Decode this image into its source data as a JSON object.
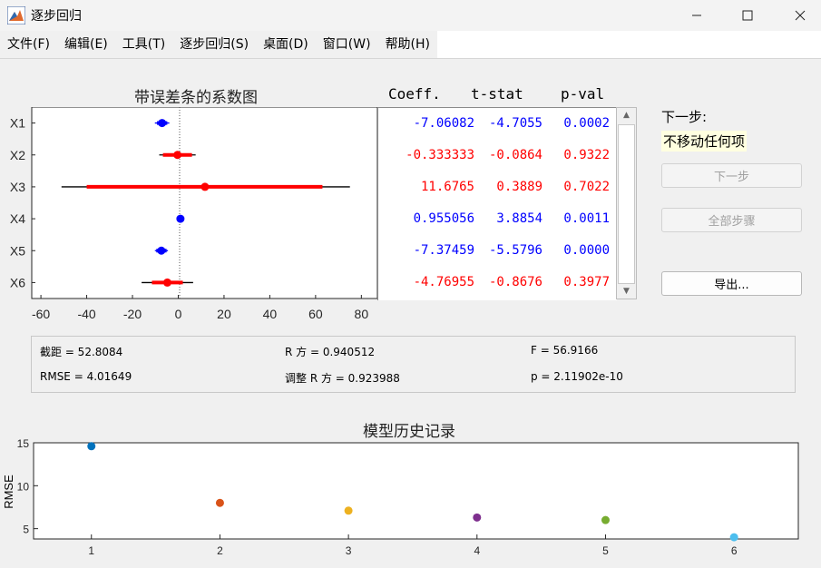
{
  "window": {
    "title": "逐步回归",
    "minimize_icon": "minimize-icon",
    "maximize_icon": "maximize-icon",
    "close_icon": "close-icon"
  },
  "menu": [
    "文件(F)",
    "编辑(E)",
    "工具(T)",
    "逐步回归(S)",
    "桌面(D)",
    "窗口(W)",
    "帮助(H)"
  ],
  "coef_plot": {
    "title": "带误差条的系数图",
    "row_labels": [
      "X1",
      "X2",
      "X3",
      "X4",
      "X5",
      "X6"
    ],
    "x_ticks": [
      "-60",
      "-40",
      "-20",
      "0",
      "20",
      "40",
      "60",
      "80"
    ],
    "xlim": [
      -64,
      87
    ],
    "in_model_color": "#0000ff",
    "out_model_color": "#ff0000"
  },
  "table": {
    "headers": [
      "Coeff.",
      "t-stat",
      "p-val"
    ],
    "rows": [
      {
        "coeff": "-7.06082",
        "tstat": "-4.7055",
        "pval": "0.0002",
        "in_model": true
      },
      {
        "coeff": "-0.333333",
        "tstat": "-0.0864",
        "pval": "0.9322",
        "in_model": false
      },
      {
        "coeff": "11.6765",
        "tstat": "0.3889",
        "pval": "0.7022",
        "in_model": false
      },
      {
        "coeff": "0.955056",
        "tstat": "3.8854",
        "pval": "0.0011",
        "in_model": true
      },
      {
        "coeff": "-7.37459",
        "tstat": "-5.5796",
        "pval": "0.0000",
        "in_model": true
      },
      {
        "coeff": "-4.76955",
        "tstat": "-0.8676",
        "pval": "0.3977",
        "in_model": false
      }
    ]
  },
  "side_panel": {
    "next_step_label": "下一步:",
    "next_step_value": "不移动任何项",
    "next_button": "下一步",
    "all_steps_button": "全部步骤",
    "export_button": "导出..."
  },
  "stats": {
    "intercept": "截距 = 52.8084",
    "r_squared": "R 方 = 0.940512",
    "f_stat": "F = 56.9166",
    "rmse": "RMSE = 4.01649",
    "adj_r_squared": "调整 R 方 = 0.923988",
    "p_value": "p = 2.11902e-10"
  },
  "chart_data": [
    {
      "type": "scatter",
      "title": "带误差条的系数图",
      "orientation": "horizontal",
      "categories": [
        "X1",
        "X2",
        "X3",
        "X4",
        "X5",
        "X6"
      ],
      "values": [
        -7.06082,
        -0.333333,
        11.6765,
        0.955056,
        -7.37459,
        -4.76955
      ],
      "ci_inner": [
        [
          -9.3,
          -4.8
        ],
        [
          -6.7,
          6.0
        ],
        [
          -40,
          63
        ],
        [
          0.4,
          1.5
        ],
        [
          -9.6,
          -5.1
        ],
        [
          -11.5,
          2.0
        ]
      ],
      "ci_outer": [
        [
          -10.2,
          -3.9
        ],
        [
          -8.3,
          7.6
        ],
        [
          -51,
          75
        ],
        [
          0.2,
          1.7
        ],
        [
          -10.2,
          -4.5
        ],
        [
          -16,
          6.5
        ]
      ],
      "in_model": [
        true,
        false,
        false,
        true,
        true,
        false
      ],
      "xlim": [
        -64,
        87
      ],
      "x_ticks": [
        -60,
        -40,
        -20,
        0,
        20,
        40,
        60,
        80
      ]
    },
    {
      "type": "scatter",
      "title": "模型历史记录",
      "xlabel": "",
      "ylabel": "RMSE",
      "x": [
        1,
        2,
        3,
        4,
        5,
        6
      ],
      "y": [
        14.6,
        8.0,
        7.1,
        6.3,
        6.0,
        4.0
      ],
      "colors": [
        "#0072bd",
        "#d95319",
        "#edb120",
        "#7e2f8e",
        "#77ac30",
        "#4dbeee"
      ],
      "xlim": [
        0.55,
        6.5
      ],
      "ylim": [
        3.8,
        15
      ],
      "x_ticks": [
        1,
        2,
        3,
        4,
        5,
        6
      ],
      "y_ticks": [
        5,
        10,
        15
      ]
    }
  ]
}
